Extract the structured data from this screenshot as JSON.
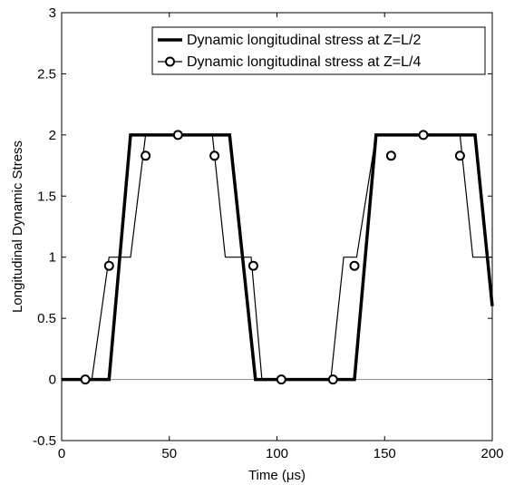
{
  "chart_data": {
    "type": "line",
    "xlabel": "Time (μs)",
    "ylabel": "Longitudinal Dynamic Stress",
    "xlim": [
      0,
      200
    ],
    "ylim": [
      -0.5,
      3
    ],
    "xticks": [
      "0",
      "50",
      "100",
      "150",
      "200"
    ],
    "yticks": [
      "-0.5",
      "0",
      "0.5",
      "1",
      "1.5",
      "2",
      "2.5",
      "3"
    ],
    "grid": false,
    "legend_position": "top-right",
    "series": [
      {
        "name": "Dynamic longitudinal stress at Z=L/2",
        "style": "thick-line",
        "color": "#000000",
        "x": [
          0,
          22,
          32,
          78,
          90,
          136,
          146,
          192,
          200
        ],
        "y": [
          0,
          0,
          2,
          2,
          0,
          0,
          2,
          2,
          0.6
        ]
      },
      {
        "name": "Dynamic longitudinal stress at Z=L/4",
        "style": "thin-line-circle-markers",
        "color": "#000000",
        "x": [
          0,
          14,
          22,
          32,
          39,
          48,
          70,
          76,
          84,
          88,
          93,
          125,
          131,
          137,
          146,
          153,
          162,
          185,
          191,
          200
        ],
        "y": [
          0,
          0,
          1,
          1,
          2,
          2,
          2,
          1,
          1,
          1,
          0,
          0,
          1,
          1,
          2,
          2,
          2,
          2,
          1,
          1
        ],
        "markers": {
          "x": [
            11,
            22,
            39,
            54,
            71,
            89,
            102,
            126,
            136,
            153,
            168,
            185
          ],
          "y": [
            0,
            0.93,
            1.83,
            2,
            1.83,
            0.93,
            0,
            0,
            0.93,
            1.83,
            2,
            1.83
          ]
        }
      }
    ]
  }
}
